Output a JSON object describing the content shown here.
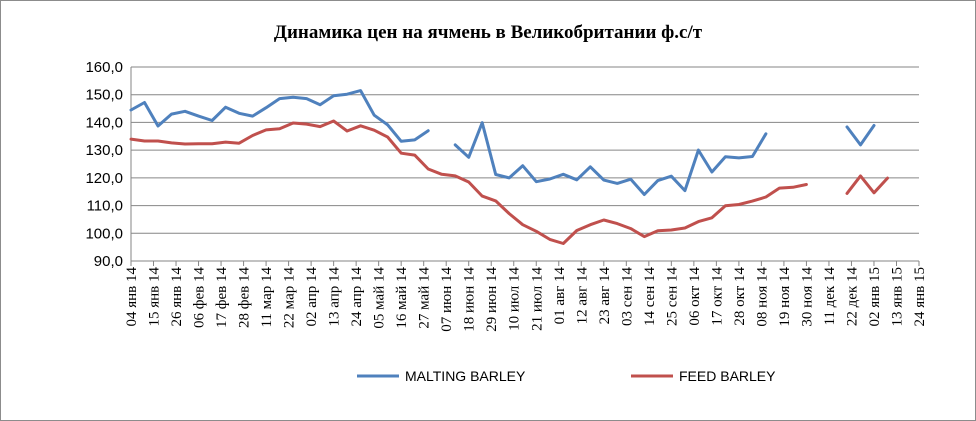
{
  "chart_data": {
    "type": "line",
    "title": "Динамика  цен на ячмень в Великобритании  ф.с/т",
    "xlabel": "",
    "ylabel": "",
    "ylim": [
      90,
      160
    ],
    "yticks": [
      "160,0",
      "150,0",
      "140,0",
      "130,0",
      "120,0",
      "110,0",
      "100,0",
      "90,0"
    ],
    "ytick_values": [
      160,
      150,
      140,
      130,
      120,
      110,
      100,
      90
    ],
    "grid": "horizontal",
    "legend_position": "bottom",
    "x_tick_labels": [
      "04 янв 14",
      "15 янв 14",
      "26 янв 14",
      "06 фев 14",
      "17 фев 14",
      "28 фев 14",
      "11 мар 14",
      "22 мар 14",
      "02 апр 14",
      "13 апр 14",
      "24 апр 14",
      "05 май 14",
      "16 май 14",
      "27 май 14",
      "07 июн 14",
      "18 июн 14",
      "29 июн 14",
      "10 июл 14",
      "21 июл 14",
      "01 авг 14",
      "12 авг 14",
      "23 авг 14",
      "03 сен 14",
      "14 сен 14",
      "25 сен 14",
      "06 окт 14",
      "17 окт 14",
      "28 окт 14",
      "08 ноя 14",
      "19 ноя 14",
      "30 ноя 14",
      "11 дек 14",
      "22 дек 14",
      "02 янв 15",
      "13 янв 15",
      "24 янв 15"
    ],
    "series": [
      {
        "name": "MALTING BARLEY",
        "color": "#4f81bd",
        "points": [
          [
            0,
            144.5
          ],
          [
            0.6,
            147.2
          ],
          [
            1.2,
            138.7
          ],
          [
            1.8,
            143.0
          ],
          [
            2.4,
            144.0
          ],
          [
            3.0,
            142.3
          ],
          [
            3.6,
            140.7
          ],
          [
            4.2,
            145.5
          ],
          [
            4.8,
            143.3
          ],
          [
            5.4,
            142.3
          ],
          [
            6.0,
            145.3
          ],
          [
            6.6,
            148.6
          ],
          [
            7.2,
            149.1
          ],
          [
            7.8,
            148.6
          ],
          [
            8.4,
            146.4
          ],
          [
            9.0,
            149.6
          ],
          [
            9.6,
            150.2
          ],
          [
            10.2,
            151.5
          ],
          [
            10.8,
            142.6
          ],
          [
            11.4,
            139.1
          ],
          [
            12.0,
            133.2
          ],
          [
            12.6,
            133.7
          ],
          [
            13.2,
            137.0
          ],
          null,
          [
            14.4,
            131.9
          ],
          [
            15.0,
            127.4
          ],
          [
            15.6,
            139.9
          ],
          [
            16.2,
            121.2
          ],
          [
            16.8,
            120.0
          ],
          [
            17.4,
            124.4
          ],
          [
            18.0,
            118.6
          ],
          [
            18.6,
            119.6
          ],
          [
            19.2,
            121.3
          ],
          [
            19.8,
            119.3
          ],
          [
            20.4,
            124.0
          ],
          [
            21.0,
            119.2
          ],
          [
            21.6,
            118.0
          ],
          [
            22.2,
            119.5
          ],
          [
            22.8,
            114.0
          ],
          [
            23.4,
            119.0
          ],
          [
            24.0,
            120.6
          ],
          [
            24.6,
            115.4
          ],
          [
            25.2,
            130.0
          ],
          [
            25.8,
            122.1
          ],
          [
            26.4,
            127.6
          ],
          [
            27.0,
            127.2
          ],
          [
            27.6,
            127.7
          ],
          [
            28.2,
            135.9
          ],
          null,
          null,
          null,
          null,
          null,
          null,
          [
            31.8,
            138.4
          ],
          [
            32.4,
            131.9
          ],
          [
            33.0,
            138.9
          ]
        ]
      },
      {
        "name": "FEED BARLEY",
        "color": "#c0504d",
        "points": [
          [
            0,
            134.0
          ],
          [
            0.6,
            133.3
          ],
          [
            1.2,
            133.3
          ],
          [
            1.8,
            132.6
          ],
          [
            2.4,
            132.2
          ],
          [
            3.0,
            132.3
          ],
          [
            3.6,
            132.3
          ],
          [
            4.2,
            132.9
          ],
          [
            4.8,
            132.5
          ],
          [
            5.4,
            135.3
          ],
          [
            6.0,
            137.3
          ],
          [
            6.6,
            137.7
          ],
          [
            7.2,
            139.8
          ],
          [
            7.8,
            139.4
          ],
          [
            8.4,
            138.5
          ],
          [
            9.0,
            140.5
          ],
          [
            9.6,
            136.9
          ],
          [
            10.2,
            138.8
          ],
          [
            10.8,
            137.2
          ],
          [
            11.4,
            134.7
          ],
          [
            12.0,
            128.9
          ],
          [
            12.6,
            128.2
          ],
          [
            13.2,
            123.2
          ],
          [
            13.8,
            121.3
          ],
          [
            14.4,
            120.7
          ],
          [
            15.0,
            118.5
          ],
          [
            15.6,
            113.4
          ],
          [
            16.2,
            111.7
          ],
          [
            16.8,
            107.1
          ],
          [
            17.4,
            103.1
          ],
          [
            18.0,
            100.7
          ],
          [
            18.6,
            97.8
          ],
          [
            19.2,
            96.3
          ],
          [
            19.8,
            101.0
          ],
          [
            20.4,
            103.1
          ],
          [
            21.0,
            104.8
          ],
          [
            21.6,
            103.5
          ],
          [
            22.2,
            101.7
          ],
          [
            22.8,
            98.8
          ],
          [
            23.4,
            100.9
          ],
          [
            24.0,
            101.2
          ],
          [
            24.6,
            101.9
          ],
          [
            25.2,
            104.2
          ],
          [
            25.8,
            105.6
          ],
          [
            26.4,
            109.9
          ],
          [
            27.0,
            110.4
          ],
          [
            27.6,
            111.6
          ],
          [
            28.2,
            113.1
          ],
          [
            28.8,
            116.3
          ],
          [
            29.4,
            116.6
          ],
          [
            30.0,
            117.6
          ],
          null,
          null,
          null,
          [
            31.8,
            114.4
          ],
          [
            32.4,
            120.7
          ],
          [
            33.0,
            114.6
          ],
          [
            33.6,
            119.9
          ]
        ]
      }
    ]
  }
}
